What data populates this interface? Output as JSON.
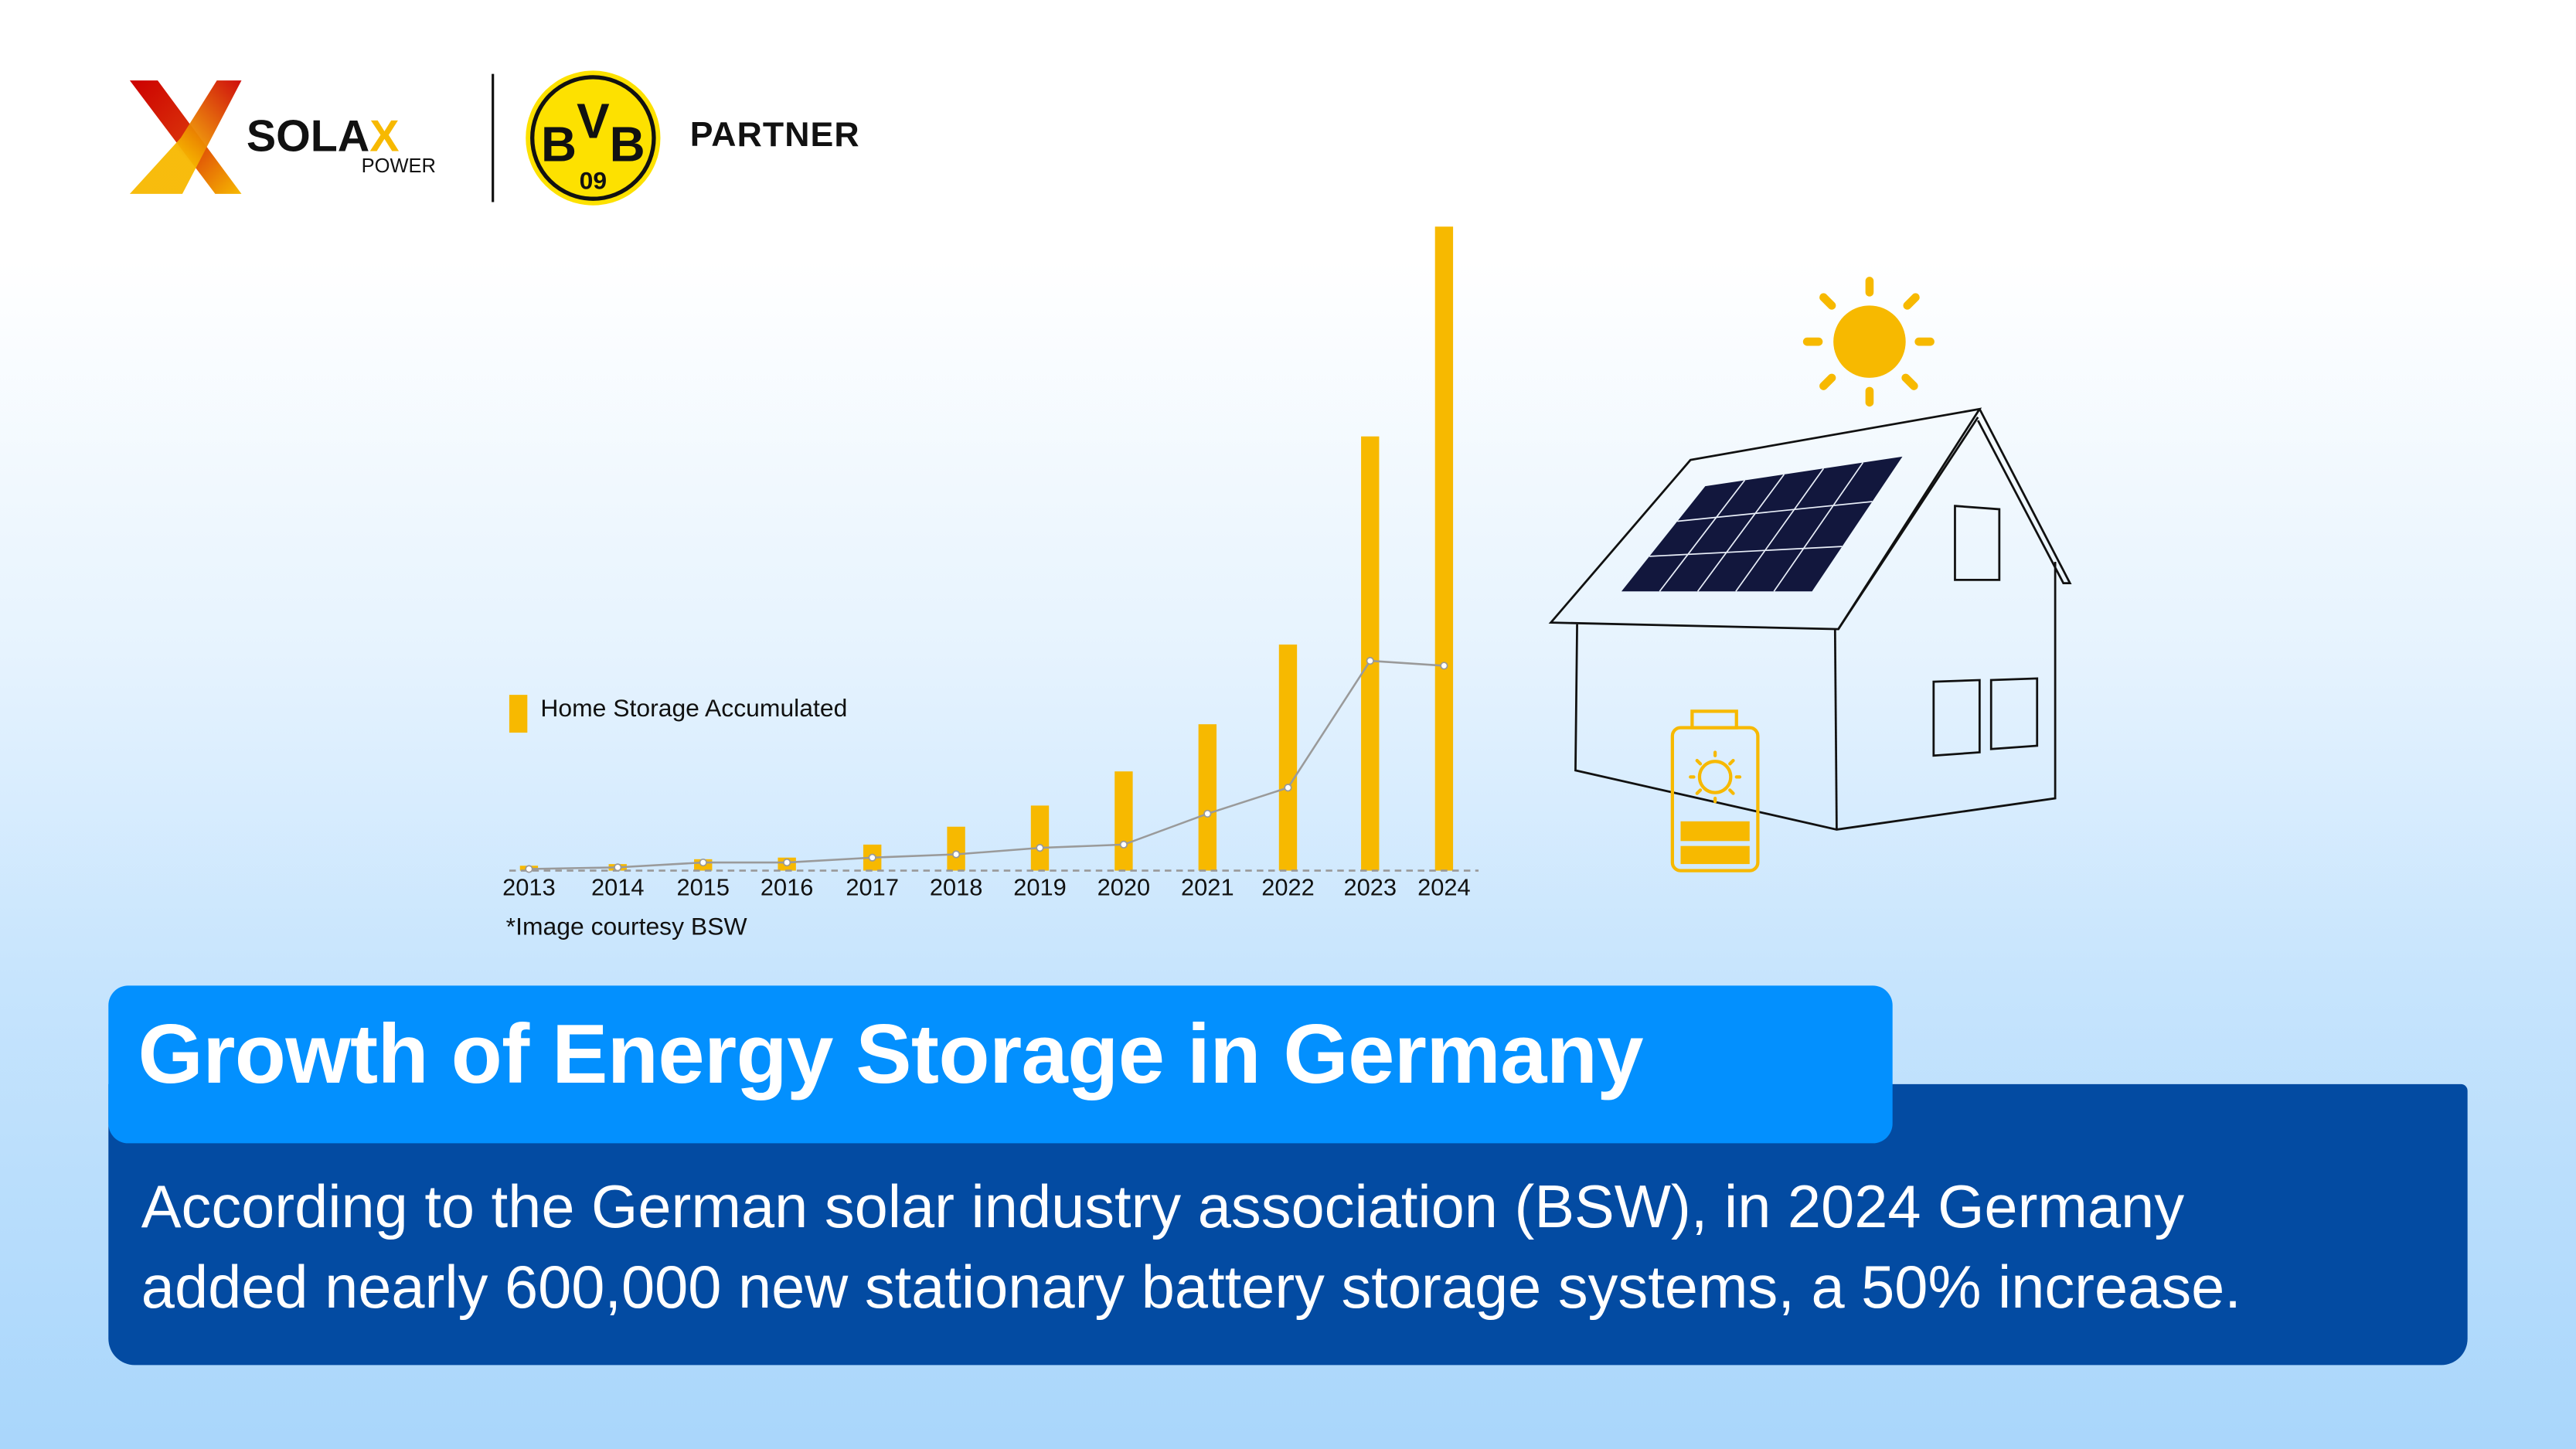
{
  "header": {
    "brand_logo": {
      "text": "SOLAX",
      "subtext": "POWER"
    },
    "partner_logo": {
      "text": "BVB",
      "subtext": "09"
    },
    "partner_label": "PARTNER"
  },
  "chart_data": {
    "type": "bar",
    "title": "",
    "xlabel": "",
    "ylabel": "",
    "categories": [
      "2013",
      "2014",
      "2015",
      "2016",
      "2017",
      "2018",
      "2019",
      "2020",
      "2021",
      "2022",
      "2023",
      "2024"
    ],
    "series": [
      {
        "name": "Home Storage Accumulated",
        "type": "bar",
        "color": "#f7b900",
        "values": [
          3,
          4,
          7,
          8,
          16,
          27,
          40,
          61,
          90,
          139,
          267,
          396
        ]
      },
      {
        "type": "line",
        "color": "#9a9a9a",
        "values": [
          1,
          2,
          5,
          5,
          8,
          10,
          14,
          16,
          35,
          51,
          129,
          126
        ]
      }
    ],
    "ylim": [
      0,
      400
    ],
    "y_axis_labels": "none",
    "grid": false,
    "baseline": "dashed",
    "legend": "left",
    "note": "*Image courtesy BSW"
  },
  "headline": "Growth of Energy Storage in Germany",
  "body": {
    "line1": "According to the German solar industry association (BSW), in 2024 Germany",
    "line2": "added nearly 600,000 new stationary battery storage systems, a 50% increase."
  },
  "colors": {
    "accent_yellow": "#f7b900",
    "title_blue": "#0390fe",
    "panel_blue": "#034ba2",
    "panel_navy": "#12173d"
  },
  "icons": [
    "solax-logo",
    "bvb-logo",
    "sun-icon",
    "house-illustration",
    "solar-panel-icon",
    "battery-icon"
  ]
}
